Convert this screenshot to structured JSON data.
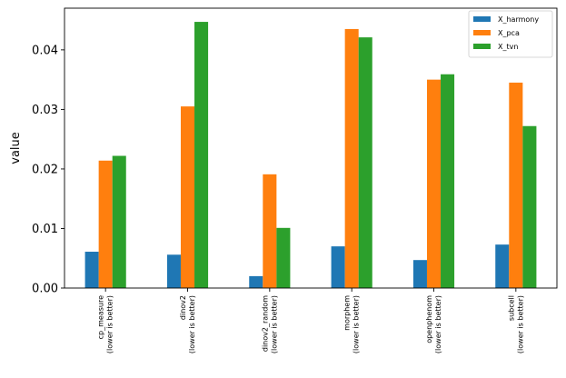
{
  "chart_data": {
    "type": "bar",
    "title": "",
    "xlabel": "",
    "ylabel": "value",
    "ylim": [
      0,
      0.047
    ],
    "yticks": [
      "0.00",
      "0.01",
      "0.02",
      "0.03",
      "0.04"
    ],
    "ytick_values": [
      0,
      0.01,
      0.02,
      0.03,
      0.04
    ],
    "grid": false,
    "legend_position": "top-right",
    "categories": [
      [
        "cp_measure",
        "(lower is better)"
      ],
      [
        "dinov2",
        "(lower is better)"
      ],
      [
        "dinov2_random",
        "(lower is better)"
      ],
      [
        "morphem",
        "(lower is better)"
      ],
      [
        "openphenom",
        "(lower is better)"
      ],
      [
        "subcell",
        "(lower is better)"
      ]
    ],
    "series": [
      {
        "name": "X_harmony",
        "color": "#1f77b4",
        "values": [
          0.0061,
          0.0056,
          0.002,
          0.007,
          0.0047,
          0.0073
        ]
      },
      {
        "name": "X_pca",
        "color": "#ff7f0e",
        "values": [
          0.0214,
          0.0305,
          0.0191,
          0.0435,
          0.035,
          0.0345
        ]
      },
      {
        "name": "X_tvn",
        "color": "#2ca02c",
        "values": [
          0.0222,
          0.0447,
          0.0101,
          0.0421,
          0.0359,
          0.0272
        ]
      }
    ]
  }
}
